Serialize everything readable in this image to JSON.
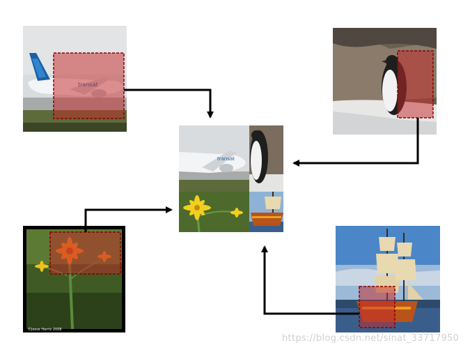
{
  "diagram": {
    "sources": [
      {
        "name": "airplane",
        "crop_color": "#c62828"
      },
      {
        "name": "penguin",
        "crop_color": "#c62828"
      },
      {
        "name": "flower",
        "crop_color": "#c62828",
        "credit": "©Jesse Harris 2008"
      },
      {
        "name": "ship",
        "crop_color": "#c62828"
      }
    ],
    "airline_text": "transat",
    "arrow_color": "#000000"
  },
  "watermark": "https://blog.csdn.net/sinat_33717950"
}
